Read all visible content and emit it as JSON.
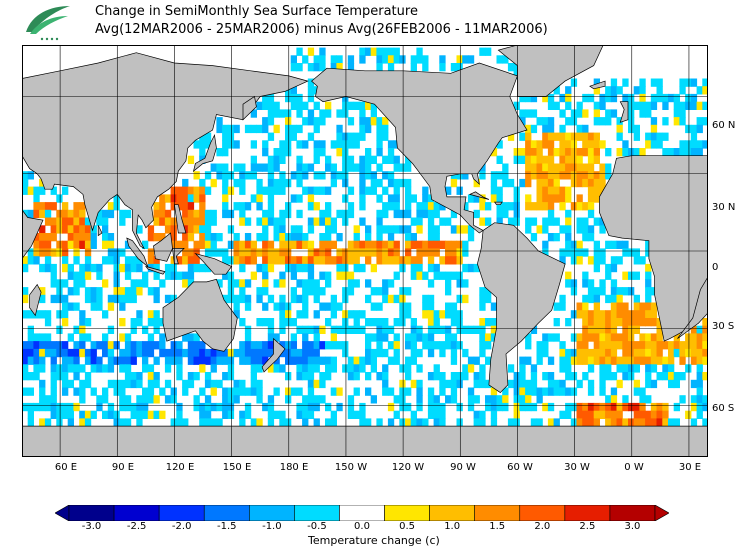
{
  "header": {
    "title_line1": "Change in SemiMonthly Sea Surface Temperature",
    "title_line2": "Avg(12MAR2006 - 25MAR2006) minus Avg(26FEB2006 - 11MAR2006)"
  },
  "logo": {
    "icon": "leaf-logo-icon"
  },
  "map": {
    "longitude_labels": [
      "60 E",
      "90 E",
      "120 E",
      "150 E",
      "180 E",
      "150 W",
      "120 W",
      "90 W",
      "60 W",
      "30 W",
      "0 W",
      "30 E"
    ],
    "latitude_labels": [
      "60 N",
      "30 N",
      "0",
      "30 S",
      "60 S"
    ],
    "land_color": "#c0c0c0",
    "ocean_missing_color": "#ffffff"
  },
  "colorbar": {
    "title": "Temperature change  (c)",
    "tick_labels": [
      "-3.0",
      "-2.5",
      "-2.0",
      "-1.5",
      "-1.0",
      "-0.5",
      "0.0",
      "0.5",
      "1.0",
      "1.5",
      "2.0",
      "2.5",
      "3.0"
    ],
    "colors": [
      "#00008c",
      "#0000d0",
      "#0032ff",
      "#0078ff",
      "#00b4ff",
      "#00dcff",
      "#ffffff",
      "#ffe600",
      "#ffbe00",
      "#ff8c00",
      "#ff5a00",
      "#e61e00",
      "#b40000"
    ]
  }
}
